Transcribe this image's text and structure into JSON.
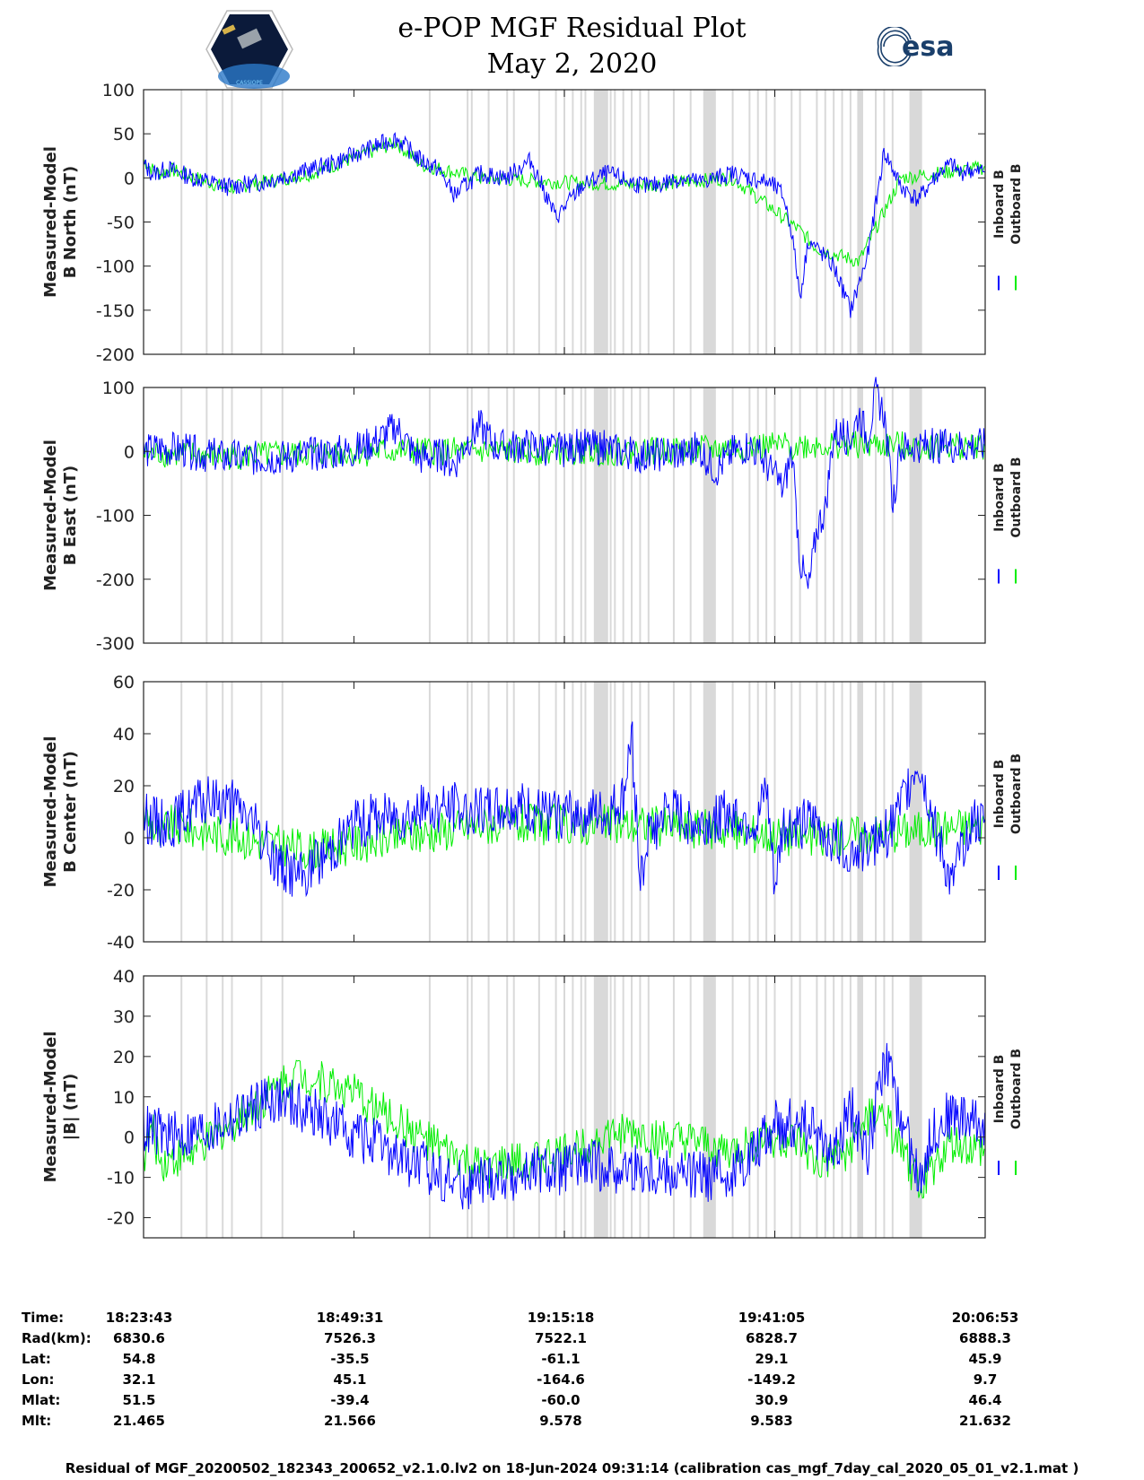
{
  "header": {
    "title_line1": "e-POP MGF Residual Plot",
    "title_line2": "May 2, 2020",
    "left_logo_text": "CASSIOPE",
    "right_logo_text": "esa"
  },
  "colors": {
    "inboard": "#0000ff",
    "outboard": "#00ee00",
    "shading": "#d9d9d9"
  },
  "chart_data": [
    {
      "type": "line",
      "ylabel_line1": "Measured-Model",
      "ylabel_line2": "B North (nT)",
      "ylim": [
        -200,
        100
      ],
      "yticks": [
        "100",
        "50",
        "0",
        "-50",
        "-100",
        "-150",
        "-200"
      ],
      "ytick_values": [
        100,
        50,
        0,
        -50,
        -100,
        -150,
        -200
      ],
      "legend": [
        "Inboard B",
        "Outboard B"
      ],
      "series": [
        {
          "name": "Inboard B",
          "x": [
            0,
            1,
            3,
            6,
            10,
            14,
            18,
            22,
            26,
            30,
            33,
            35,
            36,
            37,
            38,
            40,
            43,
            46,
            49,
            52,
            55,
            58,
            60,
            62,
            64,
            66,
            68,
            70,
            72,
            74,
            75,
            76,
            77,
            78,
            79,
            80,
            81,
            82,
            84,
            86,
            88,
            90,
            92,
            94,
            95,
            96,
            97,
            98,
            99,
            100
          ],
          "y": [
            15,
            5,
            10,
            0,
            -10,
            -5,
            5,
            15,
            30,
            45,
            20,
            10,
            -5,
            -20,
            -10,
            5,
            0,
            20,
            -45,
            -10,
            5,
            -5,
            -10,
            -5,
            0,
            -5,
            0,
            5,
            0,
            -5,
            -10,
            -20,
            -60,
            -135,
            -70,
            -80,
            -90,
            -100,
            -150,
            -90,
            30,
            -10,
            -25,
            0,
            10,
            15,
            5,
            10,
            5,
            10
          ]
        },
        {
          "name": "Outboard B",
          "x": [
            0,
            1,
            2,
            3,
            10,
            20,
            30,
            33,
            40,
            50,
            60,
            70,
            78,
            80,
            85,
            90,
            100
          ],
          "y": [
            20,
            10,
            5,
            10,
            -12,
            5,
            40,
            15,
            0,
            -5,
            -8,
            0,
            -60,
            -80,
            -95,
            0,
            12
          ]
        }
      ]
    },
    {
      "type": "line",
      "ylabel_line1": "Measured-Model",
      "ylabel_line2": "B East (nT)",
      "ylim": [
        -300,
        100
      ],
      "yticks": [
        "100",
        "0",
        "-100",
        "-200",
        "-300"
      ],
      "ytick_values": [
        100,
        0,
        -100,
        -200,
        -300
      ],
      "legend": [
        "Inboard B",
        "Outboard B"
      ],
      "series": [
        {
          "name": "Inboard B",
          "x": [
            0,
            2,
            5,
            10,
            15,
            20,
            25,
            28,
            30,
            32,
            33,
            35,
            37,
            38,
            40,
            42,
            45,
            48,
            50,
            52,
            55,
            58,
            60,
            62,
            64,
            66,
            68,
            70,
            72,
            74,
            76,
            77,
            78,
            79,
            80,
            81,
            82,
            84,
            85,
            86,
            87,
            88,
            89,
            90,
            92,
            95,
            100
          ],
          "y": [
            0,
            5,
            0,
            -10,
            -10,
            -5,
            0,
            20,
            40,
            0,
            -10,
            -5,
            -20,
            10,
            40,
            5,
            10,
            5,
            0,
            10,
            5,
            -5,
            -10,
            0,
            -5,
            5,
            -30,
            0,
            10,
            -20,
            -60,
            0,
            -170,
            -220,
            -120,
            -90,
            30,
            20,
            60,
            20,
            90,
            60,
            -80,
            5,
            10,
            8,
            10
          ]
        },
        {
          "name": "Outboard B",
          "x": [
            0,
            1,
            2,
            10,
            30,
            60,
            80,
            100
          ],
          "y": [
            -5,
            -5,
            -3,
            -8,
            0,
            0,
            10,
            8
          ]
        }
      ]
    },
    {
      "type": "line",
      "ylabel_line1": "Measured-Model",
      "ylabel_line2": "B Center (nT)",
      "ylim": [
        -40,
        60
      ],
      "yticks": [
        "60",
        "40",
        "20",
        "0",
        "-20",
        "-40"
      ],
      "ytick_values": [
        60,
        40,
        20,
        0,
        -20,
        -40
      ],
      "legend": [
        "Inboard B",
        "Outboard B"
      ],
      "series": [
        {
          "name": "Inboard B",
          "x": [
            0,
            3,
            6,
            9,
            12,
            14,
            16,
            19,
            22,
            25,
            28,
            32,
            36,
            40,
            44,
            48,
            52,
            55,
            57,
            58,
            59,
            60,
            62,
            66,
            70,
            73,
            74,
            75,
            76,
            80,
            84,
            88,
            90,
            92,
            94,
            96,
            98,
            100
          ],
          "y": [
            8,
            5,
            12,
            15,
            10,
            0,
            -10,
            -15,
            -5,
            5,
            8,
            10,
            12,
            10,
            12,
            8,
            10,
            8,
            15,
            40,
            -15,
            0,
            10,
            5,
            10,
            5,
            20,
            -20,
            5,
            5,
            -5,
            0,
            12,
            30,
            5,
            -20,
            5,
            5
          ]
        },
        {
          "name": "Outboard B",
          "x": [
            0,
            1,
            2,
            3,
            20,
            40,
            60,
            80,
            100
          ],
          "y": [
            10,
            5,
            0,
            5,
            -5,
            5,
            5,
            0,
            5
          ]
        }
      ]
    },
    {
      "type": "line",
      "ylabel_line1": "Measured-Model",
      "ylabel_line2": "|B| (nT)",
      "ylim": [
        -25,
        40
      ],
      "yticks": [
        "40",
        "30",
        "20",
        "10",
        "0",
        "-10",
        "-20"
      ],
      "ytick_values": [
        40,
        30,
        20,
        10,
        0,
        -10,
        -20
      ],
      "legend": [
        "Inboard B",
        "Outboard B"
      ],
      "series": [
        {
          "name": "Inboard B",
          "x": [
            0,
            4,
            8,
            12,
            15,
            18,
            22,
            26,
            30,
            34,
            38,
            42,
            46,
            50,
            54,
            58,
            62,
            66,
            70,
            73,
            75,
            78,
            80,
            82,
            84,
            86,
            88,
            90,
            92,
            94,
            96,
            100
          ],
          "y": [
            2,
            0,
            2,
            6,
            10,
            8,
            4,
            0,
            -5,
            -8,
            -12,
            -10,
            -9,
            -8,
            -7,
            -8,
            -9,
            -10,
            -9,
            -2,
            3,
            4,
            0,
            -5,
            8,
            -5,
            20,
            5,
            -10,
            2,
            6,
            3
          ]
        },
        {
          "name": "Outboard B",
          "x": [
            0,
            1,
            2,
            6,
            12,
            18,
            24,
            30,
            36,
            40,
            46,
            50,
            54,
            58,
            62,
            66,
            70,
            74,
            78,
            80,
            84,
            86,
            88,
            92,
            96,
            100
          ],
          "y": [
            -5,
            2,
            -6,
            -4,
            6,
            16,
            12,
            4,
            -4,
            -8,
            -6,
            -4,
            0,
            1,
            -1,
            -2,
            -4,
            0,
            -2,
            -8,
            -3,
            5,
            5,
            -12,
            -2,
            -4
          ]
        }
      ]
    }
  ],
  "table": {
    "rows": [
      {
        "label": "Time:",
        "values": [
          "18:23:43",
          "18:49:31",
          "19:15:18",
          "19:41:05",
          "20:06:53"
        ]
      },
      {
        "label": "Rad(km):",
        "values": [
          "6830.6",
          "7526.3",
          "7522.1",
          "6828.7",
          "6888.3"
        ]
      },
      {
        "label": "Lat:",
        "values": [
          "54.8",
          "-35.5",
          "-61.1",
          "29.1",
          "45.9"
        ]
      },
      {
        "label": "Lon:",
        "values": [
          "32.1",
          "45.1",
          "-164.6",
          "-149.2",
          "9.7"
        ]
      },
      {
        "label": "Mlat:",
        "values": [
          "51.5",
          "-39.4",
          "-60.0",
          "30.9",
          "46.4"
        ]
      },
      {
        "label": "Mlt:",
        "values": [
          "21.465",
          "21.566",
          "9.578",
          "9.583",
          "21.632"
        ]
      }
    ]
  },
  "footer": "Residual of MGF_20200502_182343_200652_v2.1.0.lv2 on 18-Jun-2024 09:31:14 (calibration cas_mgf_7day_cal_2020_05_01_v2.1.mat )"
}
